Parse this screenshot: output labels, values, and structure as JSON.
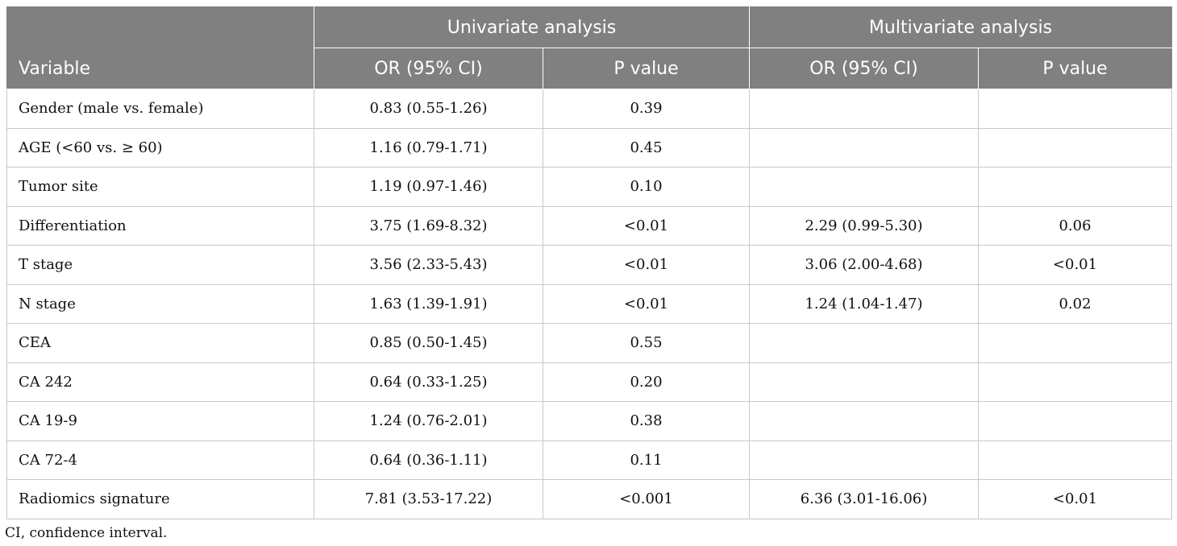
{
  "table": {
    "header": {
      "variable": "Variable",
      "univariate": "Univariate analysis",
      "multivariate": "Multivariate analysis",
      "or_ci": "OR (95% CI)",
      "p_value": "P value"
    },
    "rows": [
      {
        "variable": "Gender (male vs. female)",
        "uni_or": "0.83 (0.55-1.26)",
        "uni_p": "0.39",
        "multi_or": "",
        "multi_p": ""
      },
      {
        "variable": "AGE (<60 vs. ≥ 60)",
        "uni_or": "1.16 (0.79-1.71)",
        "uni_p": "0.45",
        "multi_or": "",
        "multi_p": ""
      },
      {
        "variable": "Tumor site",
        "uni_or": "1.19 (0.97-1.46)",
        "uni_p": "0.10",
        "multi_or": "",
        "multi_p": ""
      },
      {
        "variable": "Differentiation",
        "uni_or": "3.75 (1.69-8.32)",
        "uni_p": "<0.01",
        "multi_or": "2.29 (0.99-5.30)",
        "multi_p": "0.06"
      },
      {
        "variable": "T stage",
        "uni_or": "3.56 (2.33-5.43)",
        "uni_p": "<0.01",
        "multi_or": "3.06 (2.00-4.68)",
        "multi_p": "<0.01"
      },
      {
        "variable": "N stage",
        "uni_or": "1.63 (1.39-1.91)",
        "uni_p": "<0.01",
        "multi_or": "1.24 (1.04-1.47)",
        "multi_p": "0.02"
      },
      {
        "variable": "CEA",
        "uni_or": "0.85 (0.50-1.45)",
        "uni_p": "0.55",
        "multi_or": "",
        "multi_p": ""
      },
      {
        "variable": "CA 242",
        "uni_or": "0.64 (0.33-1.25)",
        "uni_p": "0.20",
        "multi_or": "",
        "multi_p": ""
      },
      {
        "variable": "CA 19-9",
        "uni_or": "1.24 (0.76-2.01)",
        "uni_p": "0.38",
        "multi_or": "",
        "multi_p": ""
      },
      {
        "variable": "CA 72-4",
        "uni_or": "0.64 (0.36-1.11)",
        "uni_p": "0.11",
        "multi_or": "",
        "multi_p": ""
      },
      {
        "variable": "Radiomics signature",
        "uni_or": "7.81 (3.53-17.22)",
        "uni_p": "<0.001",
        "multi_or": "6.36 (3.01-16.06)",
        "multi_p": "<0.01"
      }
    ]
  },
  "footnote": "CI, confidence interval.",
  "colors": {
    "header_bg": "#808080",
    "header_text": "#ffffff",
    "grid_line": "#c8c8c8"
  }
}
